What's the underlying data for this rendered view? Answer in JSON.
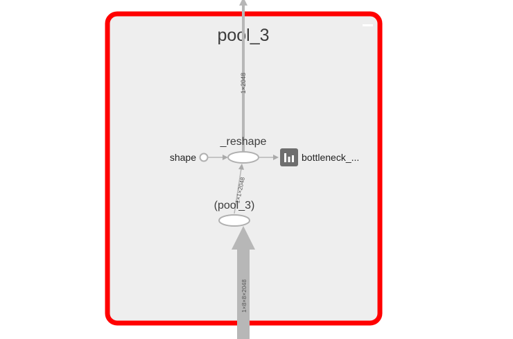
{
  "group": {
    "title": "pool_3",
    "border_color": "#ff0000",
    "fill_color": "#eeeeee"
  },
  "nodes": {
    "reshape": {
      "label": "_reshape"
    },
    "pool3_op": {
      "label": "(pool_3)"
    },
    "shape_const": {
      "label": "shape"
    },
    "bottleneck": {
      "label": "bottleneck_...",
      "icon": "summary-bar-chart-icon"
    }
  },
  "edges": {
    "top_out": {
      "label": "1×2048"
    },
    "pool_to_reshape": {
      "label": "1×1×2048"
    },
    "bottom_in": {
      "label": "1×8×8×2048"
    }
  },
  "colors": {
    "edge": "#b7b7b7",
    "node_stroke": "#b0b0b0",
    "icon_bg": "#6e6e6e"
  }
}
